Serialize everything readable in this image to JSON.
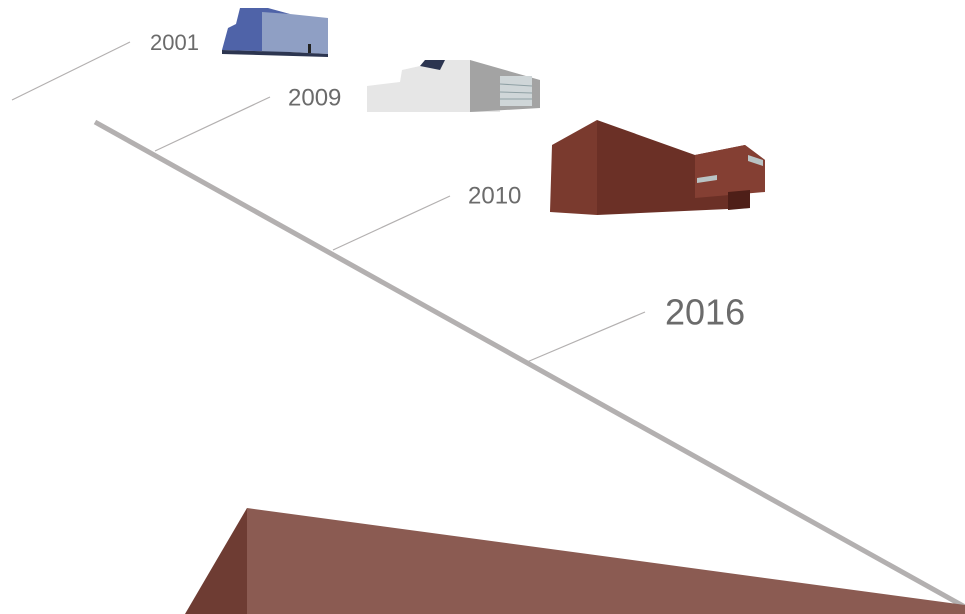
{
  "nodes": [
    {
      "label": "2001"
    },
    {
      "label": "2009"
    },
    {
      "label": "2010"
    },
    {
      "label": "2016"
    }
  ]
}
